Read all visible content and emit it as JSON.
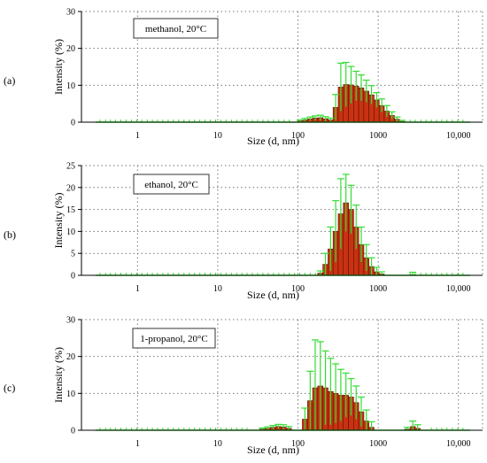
{
  "figure": {
    "panel_letters": [
      "(a)",
      "(b)",
      "(c)"
    ]
  },
  "colors": {
    "bar_fill": "#c83212",
    "bar_stroke": "#5a1000",
    "error_bar": "#33dd33",
    "grid": "#777777",
    "annotation_border": "#333333"
  },
  "chart_data": [
    {
      "type": "bar",
      "x_scale": "log",
      "xlim": [
        0.2,
        20000
      ],
      "ylim": [
        0,
        30
      ],
      "yticks": [
        0,
        10,
        20,
        30
      ],
      "xticks": [
        1,
        10,
        100,
        1000,
        10000
      ],
      "xtick_labels": [
        "1",
        "10",
        "100",
        "1000",
        "10,000"
      ],
      "xlabel": "Size (d, nm)",
      "ylabel": "Intensity (%)",
      "annotation": "methanol, 20°C",
      "grid": true,
      "error_bar_x": [
        0.34,
        0.4,
        0.46,
        0.53,
        0.62,
        0.72,
        0.84,
        0.98,
        1.13,
        1.32,
        1.53,
        1.78,
        2.07,
        2.41,
        2.8,
        3.26,
        3.79,
        4.41,
        5.13,
        5.97,
        6.94,
        8.08,
        9.39,
        10.9,
        12.7,
        14.8,
        17.2,
        20.0,
        23.2,
        27.0,
        31.4,
        36.6,
        42.6,
        49.5,
        57.6,
        67.0,
        77.9,
        2500,
        2900,
        3400,
        3950,
        4600,
        5350,
        6200,
        7200,
        8400,
        9800,
        11400
      ],
      "bars": [
        {
          "x": 106,
          "value": 0.3,
          "error": 0.3
        },
        {
          "x": 122,
          "value": 0.6,
          "error": 0.4
        },
        {
          "x": 142,
          "value": 0.9,
          "error": 0.5
        },
        {
          "x": 164,
          "value": 1.1,
          "error": 0.6
        },
        {
          "x": 190,
          "value": 1.2,
          "error": 0.7
        },
        {
          "x": 220,
          "value": 0.9,
          "error": 0.6
        },
        {
          "x": 255,
          "value": 0.6,
          "error": 0.5
        },
        {
          "x": 295,
          "value": 4.0,
          "error": 3.5
        },
        {
          "x": 342,
          "value": 9.5,
          "error": 6.5
        },
        {
          "x": 396,
          "value": 10.2,
          "error": 6.0
        },
        {
          "x": 459,
          "value": 10.1,
          "error": 5.0
        },
        {
          "x": 531,
          "value": 9.8,
          "error": 4.0
        },
        {
          "x": 615,
          "value": 9.3,
          "error": 3.5
        },
        {
          "x": 712,
          "value": 8.4,
          "error": 3.0
        },
        {
          "x": 825,
          "value": 7.4,
          "error": 2.5
        },
        {
          "x": 955,
          "value": 6.0,
          "error": 2.0
        },
        {
          "x": 1106,
          "value": 4.5,
          "error": 1.8
        },
        {
          "x": 1281,
          "value": 3.0,
          "error": 1.5
        },
        {
          "x": 1483,
          "value": 1.8,
          "error": 1.0
        },
        {
          "x": 1717,
          "value": 0.8,
          "error": 0.6
        },
        {
          "x": 1989,
          "value": 0.2,
          "error": 0.3
        }
      ]
    },
    {
      "type": "bar",
      "x_scale": "log",
      "xlim": [
        0.2,
        20000
      ],
      "ylim": [
        0,
        25
      ],
      "yticks": [
        0,
        5,
        10,
        15,
        20,
        25
      ],
      "xticks": [
        1,
        10,
        100,
        1000,
        10000
      ],
      "xtick_labels": [
        "1",
        "10",
        "100",
        "1000",
        "10,000"
      ],
      "xlabel": "Size (d, nm)",
      "ylabel": "Intensity (%)",
      "annotation": "ethanol, 20°C",
      "grid": true,
      "error_bar_x": [
        0.34,
        0.4,
        0.46,
        0.53,
        0.62,
        0.72,
        0.84,
        0.98,
        1.13,
        1.32,
        1.53,
        1.78,
        2.07,
        2.41,
        2.8,
        3.26,
        3.79,
        4.41,
        5.13,
        5.97,
        6.94,
        8.08,
        9.39,
        10.9,
        12.7,
        14.8,
        17.2,
        20.0,
        23.2,
        27.0,
        31.4,
        36.6,
        42.6,
        49.5,
        57.6,
        67.0,
        77.9,
        90.6,
        105,
        122,
        142,
        165,
        2500,
        2900,
        3400,
        3950,
        4600,
        5350,
        6200,
        7200,
        8400,
        9800,
        11400
      ],
      "bars": [
        {
          "x": 190,
          "value": 0.5,
          "error": 0.5
        },
        {
          "x": 220,
          "value": 2.5,
          "error": 2.5
        },
        {
          "x": 255,
          "value": 6.0,
          "error": 5.0
        },
        {
          "x": 295,
          "value": 10.0,
          "error": 7.0
        },
        {
          "x": 342,
          "value": 14.0,
          "error": 8.0
        },
        {
          "x": 396,
          "value": 16.5,
          "error": 6.5
        },
        {
          "x": 459,
          "value": 15.0,
          "error": 5.5
        },
        {
          "x": 531,
          "value": 11.0,
          "error": 5.0
        },
        {
          "x": 615,
          "value": 7.0,
          "error": 4.0
        },
        {
          "x": 712,
          "value": 4.0,
          "error": 3.0
        },
        {
          "x": 825,
          "value": 2.0,
          "error": 2.0
        },
        {
          "x": 955,
          "value": 0.8,
          "error": 1.0
        },
        {
          "x": 1106,
          "value": 0.3,
          "error": 0.5
        },
        {
          "x": 2700,
          "value": 0.1,
          "error": 0.6
        }
      ]
    },
    {
      "type": "bar",
      "x_scale": "log",
      "xlim": [
        0.2,
        20000
      ],
      "ylim": [
        0,
        30
      ],
      "yticks": [
        0,
        10,
        20,
        30
      ],
      "xticks": [
        1,
        10,
        100,
        1000,
        10000
      ],
      "xtick_labels": [
        "1",
        "10",
        "100",
        "1000",
        "10,000"
      ],
      "xlabel": "Size (d, nm)",
      "ylabel": "Intensity (%)",
      "annotation": "1-propanol, 20°C",
      "grid": true,
      "error_bar_x": [
        0.34,
        0.4,
        0.46,
        0.53,
        0.62,
        0.72,
        0.84,
        0.98,
        1.13,
        1.32,
        1.53,
        1.78,
        2.07,
        2.41,
        2.8,
        3.26,
        3.79,
        4.41,
        5.13,
        5.97,
        6.94,
        8.08,
        9.39,
        10.9,
        12.7,
        14.8,
        17.2,
        20.0,
        23.2,
        4600,
        5350,
        6200,
        7200,
        8400,
        9800,
        11400
      ],
      "bars": [
        {
          "x": 36,
          "value": 0.3,
          "error": 0.3
        },
        {
          "x": 42,
          "value": 0.5,
          "error": 0.4
        },
        {
          "x": 49,
          "value": 0.8,
          "error": 0.5
        },
        {
          "x": 57,
          "value": 1.0,
          "error": 0.6
        },
        {
          "x": 66,
          "value": 0.9,
          "error": 0.6
        },
        {
          "x": 77,
          "value": 0.5,
          "error": 0.5
        },
        {
          "x": 122,
          "value": 3.0,
          "error": 3.0
        },
        {
          "x": 142,
          "value": 8.0,
          "error": 8.0
        },
        {
          "x": 164,
          "value": 11.5,
          "error": 13.0
        },
        {
          "x": 190,
          "value": 12.0,
          "error": 12.0
        },
        {
          "x": 220,
          "value": 11.5,
          "error": 10.0
        },
        {
          "x": 255,
          "value": 10.5,
          "error": 9.0
        },
        {
          "x": 295,
          "value": 10.0,
          "error": 8.0
        },
        {
          "x": 342,
          "value": 9.5,
          "error": 7.0
        },
        {
          "x": 396,
          "value": 9.5,
          "error": 6.0
        },
        {
          "x": 459,
          "value": 9.0,
          "error": 5.0
        },
        {
          "x": 531,
          "value": 7.5,
          "error": 4.5
        },
        {
          "x": 615,
          "value": 5.0,
          "error": 4.0
        },
        {
          "x": 712,
          "value": 2.5,
          "error": 3.0
        },
        {
          "x": 825,
          "value": 0.8,
          "error": 1.5
        },
        {
          "x": 2300,
          "value": 0.3,
          "error": 0.5
        },
        {
          "x": 2700,
          "value": 1.0,
          "error": 1.5
        },
        {
          "x": 3100,
          "value": 0.5,
          "error": 1.0
        }
      ]
    }
  ]
}
